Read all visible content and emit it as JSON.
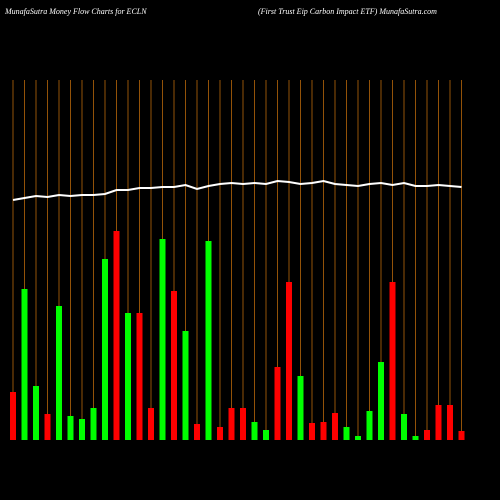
{
  "chart_data": {
    "type": "bar",
    "title": "MunafaSutra  Money Flow  Charts for ECLN",
    "subtitle": "(First Trust Eip Carbon  Impact ETF) MunafaSutra.com",
    "categories": [
      null,
      null,
      null,
      null,
      null,
      null,
      null,
      null,
      null,
      null,
      null,
      null,
      null,
      null,
      null,
      null,
      null,
      null,
      null,
      null,
      null,
      null,
      null,
      null,
      null,
      null,
      null,
      null,
      null,
      null,
      null,
      null,
      null,
      null,
      null,
      null,
      null,
      null,
      null,
      null
    ],
    "values": [
      48,
      151,
      54,
      26,
      134,
      24,
      21,
      32,
      181,
      209,
      127,
      127,
      32,
      201,
      149,
      109,
      16,
      199,
      13,
      32,
      32,
      18,
      10,
      73,
      158,
      64,
      17,
      18,
      27,
      13,
      4,
      29,
      78,
      158,
      26,
      4,
      10,
      35,
      35,
      9
    ],
    "colors": [
      "#ff0000",
      "#00ff00",
      "#00ff00",
      "#ff0000",
      "#00ff00",
      "#00ff00",
      "#00ff00",
      "#00ff00",
      "#00ff00",
      "#ff0000",
      "#00ff00",
      "#ff0000",
      "#ff0000",
      "#00ff00",
      "#ff0000",
      "#00ff00",
      "#ff0000",
      "#00ff00",
      "#ff0000",
      "#ff0000",
      "#ff0000",
      "#00ff00",
      "#00ff00",
      "#ff0000",
      "#ff0000",
      "#00ff00",
      "#ff0000",
      "#ff0000",
      "#ff0000",
      "#00ff00",
      "#00ff00",
      "#00ff00",
      "#00ff00",
      "#ff0000",
      "#00ff00",
      "#00ff00",
      "#ff0000",
      "#ff0000",
      "#ff0000",
      "#ff0000"
    ],
    "line": {
      "color": "#ffffff",
      "values": [
        240,
        242,
        244,
        243,
        245,
        244,
        245,
        245,
        246,
        250,
        250,
        252,
        252,
        253,
        253,
        255,
        251,
        254,
        256,
        257,
        256,
        257,
        256,
        259,
        258,
        256,
        257,
        259,
        256,
        255,
        254,
        256,
        257,
        255,
        257,
        254,
        254,
        255,
        254,
        253
      ]
    }
  }
}
